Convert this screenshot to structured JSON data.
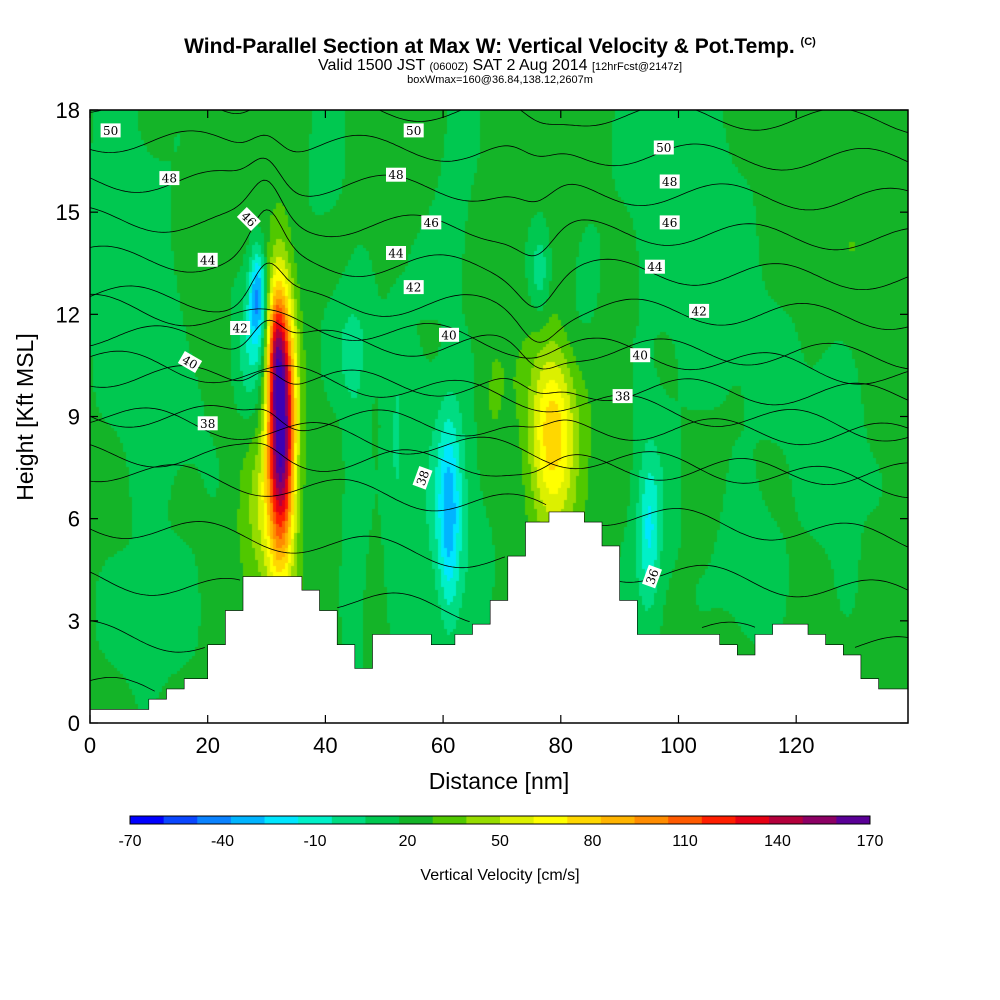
{
  "header": {
    "title_main": "Wind-Parallel Section at Max W: Vertical Velocity & Pot.Temp.",
    "title_copyright": "(C)",
    "subtitle_valid": "Valid 1500 JST",
    "subtitle_zulu": "(0600Z)",
    "subtitle_date": "SAT 2 Aug 2014",
    "subtitle_fcst": "[12hrFcst@2147z]",
    "subtitle_box": "boxWmax=160@36.84,138.12,2607m"
  },
  "chart_data": {
    "type": "heatmap",
    "xlabel": "Distance [nm]",
    "ylabel": "Height [Kft MSL]",
    "xlim": [
      0,
      139
    ],
    "ylim": [
      0,
      18
    ],
    "xticks": [
      0,
      20,
      40,
      60,
      80,
      100,
      120
    ],
    "yticks": [
      0,
      3,
      6,
      9,
      12,
      15,
      18
    ],
    "colorbar": {
      "label": "Vertical Velocity [cm/s]",
      "min": -70,
      "max": 170,
      "ticks": [
        -70,
        -40,
        -10,
        20,
        50,
        80,
        110,
        140,
        170
      ],
      "colors": [
        "#0000ff",
        "#0a46ff",
        "#0a82ff",
        "#00b4ff",
        "#00e6ff",
        "#00f0c8",
        "#00dc82",
        "#00c850",
        "#14b428",
        "#50c800",
        "#96dc00",
        "#dcf000",
        "#ffff00",
        "#ffd700",
        "#ffb400",
        "#ff8c00",
        "#ff5a00",
        "#ff1e00",
        "#e60014",
        "#b4003c",
        "#8c0064",
        "#5a0096",
        "#3c00b4"
      ]
    },
    "background_color": "#00c850",
    "terrain": [
      [
        0,
        0.4
      ],
      [
        10,
        0.4
      ],
      [
        10,
        0.7
      ],
      [
        13,
        0.7
      ],
      [
        13,
        1.0
      ],
      [
        16,
        1.0
      ],
      [
        16,
        1.3
      ],
      [
        20,
        1.3
      ],
      [
        20,
        2.3
      ],
      [
        23,
        2.3
      ],
      [
        23,
        3.3
      ],
      [
        26,
        3.3
      ],
      [
        26,
        4.3
      ],
      [
        36,
        4.3
      ],
      [
        36,
        3.9
      ],
      [
        39,
        3.9
      ],
      [
        39,
        3.3
      ],
      [
        42,
        3.3
      ],
      [
        42,
        2.3
      ],
      [
        45,
        2.3
      ],
      [
        45,
        1.6
      ],
      [
        48,
        1.6
      ],
      [
        48,
        2.6
      ],
      [
        58,
        2.6
      ],
      [
        58,
        2.3
      ],
      [
        62,
        2.3
      ],
      [
        62,
        2.6
      ],
      [
        65,
        2.6
      ],
      [
        65,
        2.9
      ],
      [
        68,
        2.9
      ],
      [
        68,
        3.6
      ],
      [
        71,
        3.6
      ],
      [
        71,
        4.9
      ],
      [
        74,
        4.9
      ],
      [
        74,
        5.9
      ],
      [
        78,
        5.9
      ],
      [
        78,
        6.2
      ],
      [
        84,
        6.2
      ],
      [
        84,
        5.9
      ],
      [
        87,
        5.9
      ],
      [
        87,
        5.2
      ],
      [
        90,
        5.2
      ],
      [
        90,
        3.6
      ],
      [
        93,
        3.6
      ],
      [
        93,
        2.6
      ],
      [
        107,
        2.6
      ],
      [
        107,
        2.3
      ],
      [
        110,
        2.3
      ],
      [
        110,
        2.0
      ],
      [
        113,
        2.0
      ],
      [
        113,
        2.6
      ],
      [
        116,
        2.6
      ],
      [
        116,
        2.9
      ],
      [
        122,
        2.9
      ],
      [
        122,
        2.6
      ],
      [
        125,
        2.6
      ],
      [
        125,
        2.3
      ],
      [
        128,
        2.3
      ],
      [
        128,
        2.0
      ],
      [
        131,
        2.0
      ],
      [
        131,
        1.3
      ],
      [
        134,
        1.3
      ],
      [
        134,
        1.0
      ],
      [
        139,
        1.0
      ]
    ],
    "w_features": [
      {
        "x": 32.5,
        "y": 8.8,
        "sx": 1.6,
        "sy": 2.6,
        "w": 160
      },
      {
        "x": 31.5,
        "y": 11.0,
        "sx": 1.0,
        "sy": 1.3,
        "w": 45
      },
      {
        "x": 30.0,
        "y": 6.0,
        "sx": 3.0,
        "sy": 2.0,
        "w": 25
      },
      {
        "x": 28.5,
        "y": 12.6,
        "sx": 1.0,
        "sy": 1.0,
        "w": -55
      },
      {
        "x": 27.5,
        "y": 11.0,
        "sx": 2.0,
        "sy": 1.5,
        "w": -25
      },
      {
        "x": 78.5,
        "y": 8.8,
        "sx": 2.6,
        "sy": 1.8,
        "w": 48
      },
      {
        "x": 80.0,
        "y": 7.5,
        "sx": 4.0,
        "sy": 2.5,
        "w": 15
      },
      {
        "x": 61.0,
        "y": 6.0,
        "sx": 1.3,
        "sy": 2.0,
        "w": -40
      },
      {
        "x": 61.0,
        "y": 6.5,
        "sx": 5.0,
        "sy": 3.0,
        "w": -20
      },
      {
        "x": 52.0,
        "y": 7.5,
        "sx": 1.5,
        "sy": 3.0,
        "w": -15
      },
      {
        "x": 45.0,
        "y": 5.5,
        "sx": 1.5,
        "sy": 3.5,
        "w": -15
      },
      {
        "x": 95.0,
        "y": 5.6,
        "sx": 1.3,
        "sy": 1.5,
        "w": -30
      },
      {
        "x": 95.0,
        "y": 6.5,
        "sx": 4.0,
        "sy": 3.5,
        "w": -12
      },
      {
        "x": 76.5,
        "y": 13.3,
        "sx": 1.3,
        "sy": 1.0,
        "w": -25
      },
      {
        "x": 62.0,
        "y": 16.5,
        "sx": 2.5,
        "sy": 2.5,
        "w": -10
      },
      {
        "x": 45.0,
        "y": 11.0,
        "sx": 3.0,
        "sy": 1.3,
        "w": -18
      },
      {
        "x": 83.0,
        "y": 11.5,
        "sx": 3.0,
        "sy": 1.5,
        "w": -10
      },
      {
        "x": 6.0,
        "y": 14.0,
        "sx": 5.0,
        "sy": 4.0,
        "w": -12
      },
      {
        "x": 15.0,
        "y": 10.0,
        "sx": 5.0,
        "sy": 3.0,
        "w": -10
      },
      {
        "x": 10.0,
        "y": 3.0,
        "sx": 6.0,
        "sy": 1.5,
        "w": -12
      },
      {
        "x": 100.0,
        "y": 16.0,
        "sx": 8.0,
        "sy": 2.5,
        "w": -12
      },
      {
        "x": 108.0,
        "y": 12.0,
        "sx": 5.0,
        "sy": 2.0,
        "w": -10
      },
      {
        "x": 112.0,
        "y": 4.5,
        "sx": 4.0,
        "sy": 1.5,
        "w": -15
      },
      {
        "x": 128.0,
        "y": 7.5,
        "sx": 4.0,
        "sy": 2.5,
        "w": -10
      },
      {
        "x": 132.0,
        "y": 13.0,
        "sx": 5.0,
        "sy": 3.0,
        "w": 5
      },
      {
        "x": 56.0,
        "y": 13.5,
        "sx": 3.0,
        "sy": 1.0,
        "w": -8
      },
      {
        "x": 40.0,
        "y": 16.5,
        "sx": 3.0,
        "sy": 2.5,
        "w": -8
      },
      {
        "x": 120.0,
        "y": 9.5,
        "sx": 6.0,
        "sy": 2.0,
        "w": -8
      },
      {
        "x": 18.0,
        "y": 12.0,
        "sx": 2.0,
        "sy": 1.5,
        "w": 10
      },
      {
        "x": 68.0,
        "y": 9.5,
        "sx": 2.0,
        "sy": 1.8,
        "w": 12
      },
      {
        "x": 90.0,
        "y": 9.5,
        "sx": 2.5,
        "sy": 2.0,
        "w": 5
      }
    ],
    "isentropes": {
      "levels": [
        30,
        31,
        32,
        33,
        34,
        35,
        36,
        37,
        38,
        39,
        40,
        41,
        42,
        43,
        44,
        45,
        46,
        47,
        48,
        49,
        50
      ],
      "labels": [
        {
          "text": "50",
          "x": 3.5,
          "y": 17.4,
          "rot": 0
        },
        {
          "text": "48",
          "x": 13.5,
          "y": 16.0,
          "rot": 0
        },
        {
          "text": "46",
          "x": 27.0,
          "y": 14.8,
          "rot": 45
        },
        {
          "text": "44",
          "x": 20.0,
          "y": 13.6,
          "rot": 0
        },
        {
          "text": "42",
          "x": 25.5,
          "y": 11.6,
          "rot": 0
        },
        {
          "text": "40",
          "x": 17.0,
          "y": 10.6,
          "rot": 30
        },
        {
          "text": "38",
          "x": 20.0,
          "y": 8.8,
          "rot": 0
        },
        {
          "text": "50",
          "x": 55.0,
          "y": 17.4,
          "rot": 0
        },
        {
          "text": "48",
          "x": 52.0,
          "y": 16.1,
          "rot": 0
        },
        {
          "text": "46",
          "x": 58.0,
          "y": 14.7,
          "rot": 0
        },
        {
          "text": "44",
          "x": 52.0,
          "y": 13.8,
          "rot": 0
        },
        {
          "text": "42",
          "x": 55.0,
          "y": 12.8,
          "rot": 0
        },
        {
          "text": "40",
          "x": 61.0,
          "y": 11.4,
          "rot": 0
        },
        {
          "text": "38",
          "x": 56.5,
          "y": 7.2,
          "rot": -70
        },
        {
          "text": "50",
          "x": 97.5,
          "y": 16.9,
          "rot": 0
        },
        {
          "text": "48",
          "x": 98.5,
          "y": 15.9,
          "rot": 0
        },
        {
          "text": "46",
          "x": 98.5,
          "y": 14.7,
          "rot": 0
        },
        {
          "text": "44",
          "x": 96.0,
          "y": 13.4,
          "rot": 0
        },
        {
          "text": "42",
          "x": 103.5,
          "y": 12.1,
          "rot": 0
        },
        {
          "text": "40",
          "x": 93.5,
          "y": 10.8,
          "rot": 0
        },
        {
          "text": "38",
          "x": 90.5,
          "y": 9.6,
          "rot": 0
        },
        {
          "text": "36",
          "x": 95.5,
          "y": 4.3,
          "rot": -70
        }
      ]
    }
  }
}
